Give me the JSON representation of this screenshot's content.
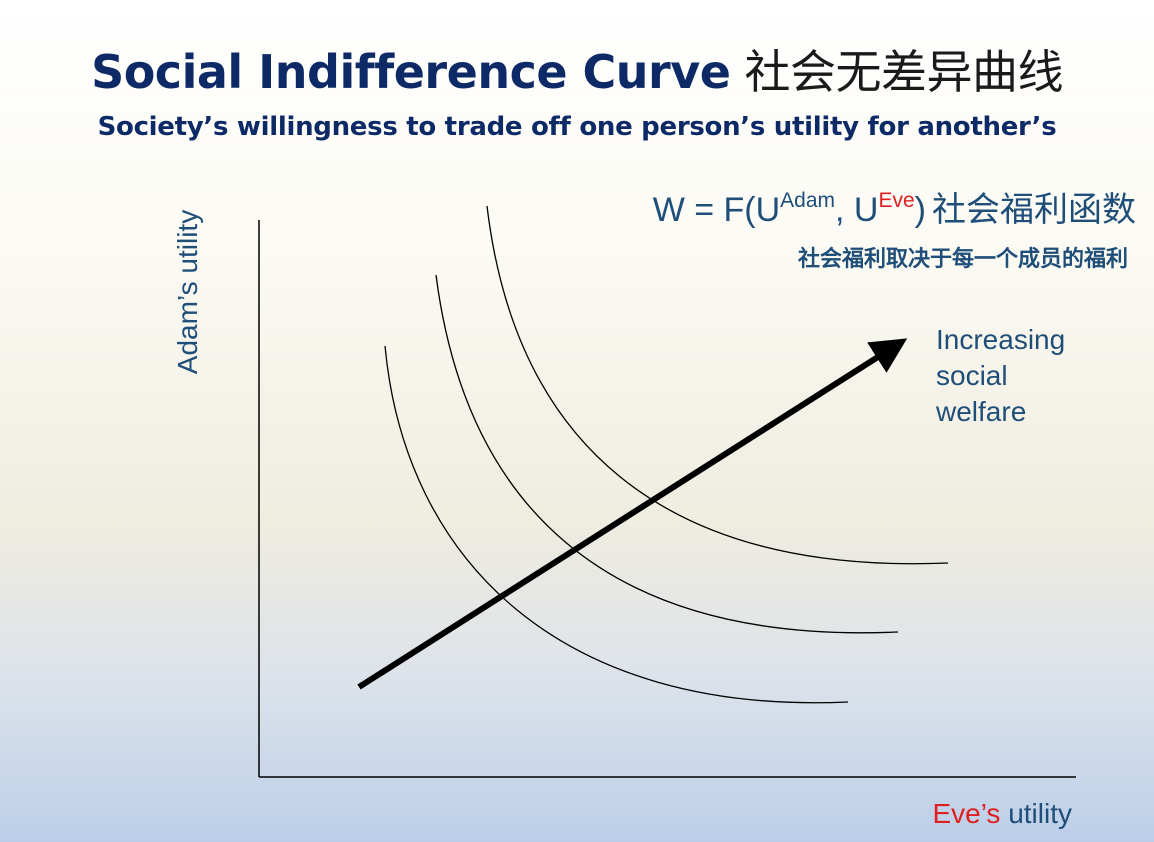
{
  "header": {
    "title": "Social Indifference Curve",
    "title_cn": "社会无差异曲线",
    "subtitle": "Society’s willingness to trade off one person’s utility for another’s"
  },
  "formula": {
    "prefix": "W = F(U",
    "adam_sup": "Adam",
    "sep": ", U",
    "eve_sup": "Eve",
    "suffix": ")",
    "label_cn": "社会福利函数"
  },
  "note_cn": "社会福利取决于每一个成员的福利",
  "axes": {
    "y_label": "Adam’s utility",
    "x_label_eve": "Eve’s",
    "x_label_rest": " utility"
  },
  "arrow_label": [
    "Increasing",
    "social",
    "welfare"
  ],
  "colors": {
    "title": "#0d2a66",
    "text": "#1f4e79",
    "highlight": "#e02020"
  },
  "curves": [
    {
      "name": "low-welfare-curve"
    },
    {
      "name": "mid-welfare-curve"
    },
    {
      "name": "high-welfare-curve"
    }
  ]
}
